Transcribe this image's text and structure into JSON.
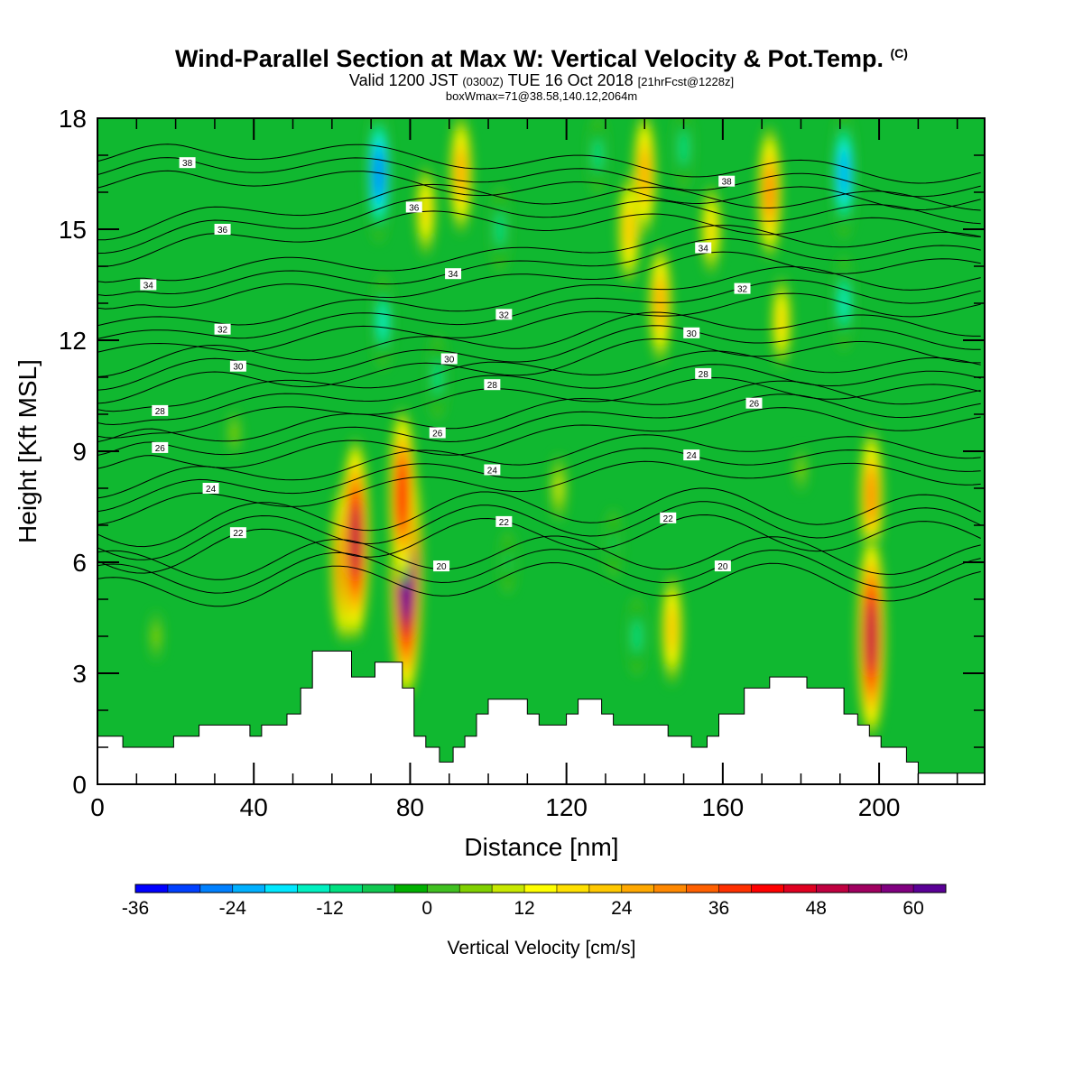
{
  "header": {
    "title": "Wind-Parallel Section at Max W: Vertical Velocity & Pot.Temp.",
    "title_mark": "(C)",
    "valid_prefix": "Valid 1200 JST",
    "valid_utc": "(0300Z)",
    "valid_date": "TUE 16 Oct 2018",
    "forecast": "[21hrFcst@1228z]",
    "box_info": "boxWmax=71@38.58,140.12,2064m"
  },
  "chart_data": {
    "type": "heatmap",
    "xlabel": "Distance [nm]",
    "ylabel": "Height [Kft MSL]",
    "xlim": [
      0,
      227
    ],
    "ylim": [
      0,
      18
    ],
    "x_ticks": [
      0,
      40,
      80,
      120,
      160,
      200
    ],
    "y_ticks": [
      0,
      3,
      6,
      9,
      12,
      15,
      18
    ],
    "colorbar": {
      "label": "Vertical Velocity [cm/s]",
      "min": -36,
      "max": 64,
      "step": 4,
      "tick_values": [
        -36,
        -24,
        -12,
        0,
        12,
        24,
        36,
        48,
        60
      ],
      "colors": [
        "#0000ff",
        "#0040ff",
        "#0080ff",
        "#00b0ff",
        "#00e8ff",
        "#00f0c0",
        "#00e080",
        "#10c850",
        "#00b000",
        "#40c020",
        "#80d000",
        "#c8e800",
        "#ffff00",
        "#ffe000",
        "#ffc800",
        "#ffa800",
        "#ff8800",
        "#ff6000",
        "#ff3000",
        "#ff0000",
        "#e00020",
        "#c00040",
        "#a00060",
        "#800080",
        "#5a0096"
      ]
    },
    "vertical_velocity_features": [
      {
        "x": 63,
        "height_kft": 6.0,
        "w_cm_s": 36
      },
      {
        "x": 66,
        "height_kft": 6.6,
        "w_cm_s": 48
      },
      {
        "x": 79,
        "height_kft": 5.8,
        "w_cm_s": 64
      },
      {
        "x": 78,
        "height_kft": 7.8,
        "w_cm_s": 40
      },
      {
        "x": 72,
        "height_kft": 16.5,
        "w_cm_s": -28
      },
      {
        "x": 73,
        "height_kft": 12.5,
        "w_cm_s": -16
      },
      {
        "x": 87,
        "height_kft": 11.0,
        "w_cm_s": -14
      },
      {
        "x": 84,
        "height_kft": 15.5,
        "w_cm_s": 16
      },
      {
        "x": 93,
        "height_kft": 16.5,
        "w_cm_s": 24
      },
      {
        "x": 103,
        "height_kft": 15.0,
        "w_cm_s": -14
      },
      {
        "x": 128,
        "height_kft": 17.0,
        "w_cm_s": -12
      },
      {
        "x": 136,
        "height_kft": 15.0,
        "w_cm_s": 22
      },
      {
        "x": 144,
        "height_kft": 13.0,
        "w_cm_s": 24
      },
      {
        "x": 140,
        "height_kft": 16.5,
        "w_cm_s": 26
      },
      {
        "x": 150,
        "height_kft": 17.2,
        "w_cm_s": -14
      },
      {
        "x": 157,
        "height_kft": 15.0,
        "w_cm_s": 16
      },
      {
        "x": 172,
        "height_kft": 16.0,
        "w_cm_s": 28
      },
      {
        "x": 175,
        "height_kft": 12.5,
        "w_cm_s": 16
      },
      {
        "x": 191,
        "height_kft": 16.5,
        "w_cm_s": -26
      },
      {
        "x": 191,
        "height_kft": 13.0,
        "w_cm_s": -16
      },
      {
        "x": 198,
        "height_kft": 7.8,
        "w_cm_s": 28
      },
      {
        "x": 198,
        "height_kft": 4.0,
        "w_cm_s": 48
      },
      {
        "x": 147,
        "height_kft": 4.2,
        "w_cm_s": 22
      },
      {
        "x": 138,
        "height_kft": 4.0,
        "w_cm_s": -12
      },
      {
        "x": 132,
        "height_kft": 6.5,
        "w_cm_s": -10
      },
      {
        "x": 105,
        "height_kft": 6.0,
        "w_cm_s": -8
      },
      {
        "x": 118,
        "height_kft": 8.0,
        "w_cm_s": 10
      },
      {
        "x": 35,
        "height_kft": 9.5,
        "w_cm_s": 4
      },
      {
        "x": 15,
        "height_kft": 4.0,
        "w_cm_s": 6
      },
      {
        "x": 180,
        "height_kft": 8.5,
        "w_cm_s": 4
      }
    ],
    "potential_temperature_labels": [
      {
        "text": "38",
        "x": 23,
        "height_kft": 16.8
      },
      {
        "text": "36",
        "x": 81,
        "height_kft": 15.6
      },
      {
        "text": "38",
        "x": 161,
        "height_kft": 16.3
      },
      {
        "text": "36",
        "x": 32,
        "height_kft": 15.0
      },
      {
        "text": "34",
        "x": 155,
        "height_kft": 14.5
      },
      {
        "text": "34",
        "x": 13,
        "height_kft": 13.5
      },
      {
        "text": "34",
        "x": 91,
        "height_kft": 13.8
      },
      {
        "text": "32",
        "x": 165,
        "height_kft": 13.4
      },
      {
        "text": "32",
        "x": 104,
        "height_kft": 12.7
      },
      {
        "text": "32",
        "x": 32,
        "height_kft": 12.3
      },
      {
        "text": "30",
        "x": 152,
        "height_kft": 12.2
      },
      {
        "text": "30",
        "x": 90,
        "height_kft": 11.5
      },
      {
        "text": "30",
        "x": 36,
        "height_kft": 11.3
      },
      {
        "text": "28",
        "x": 155,
        "height_kft": 11.1
      },
      {
        "text": "28",
        "x": 101,
        "height_kft": 10.8
      },
      {
        "text": "28",
        "x": 16,
        "height_kft": 10.1
      },
      {
        "text": "26",
        "x": 168,
        "height_kft": 10.3
      },
      {
        "text": "26",
        "x": 87,
        "height_kft": 9.5
      },
      {
        "text": "26",
        "x": 16,
        "height_kft": 9.1
      },
      {
        "text": "24",
        "x": 152,
        "height_kft": 8.9
      },
      {
        "text": "24",
        "x": 101,
        "height_kft": 8.5
      },
      {
        "text": "24",
        "x": 29,
        "height_kft": 8.0
      },
      {
        "text": "22",
        "x": 146,
        "height_kft": 7.2
      },
      {
        "text": "22",
        "x": 104,
        "height_kft": 7.1
      },
      {
        "text": "22",
        "x": 36,
        "height_kft": 6.8
      },
      {
        "text": "20",
        "x": 88,
        "height_kft": 5.9
      },
      {
        "text": "20",
        "x": 160,
        "height_kft": 5.9
      }
    ],
    "terrain_kft": [
      {
        "x": 0,
        "h": 1.3
      },
      {
        "x": 6.5,
        "h": 1.3
      },
      {
        "x": 6.5,
        "h": 1.0
      },
      {
        "x": 19.5,
        "h": 1.0
      },
      {
        "x": 19.5,
        "h": 1.3
      },
      {
        "x": 26,
        "h": 1.3
      },
      {
        "x": 26,
        "h": 1.6
      },
      {
        "x": 39,
        "h": 1.6
      },
      {
        "x": 39,
        "h": 1.3
      },
      {
        "x": 42,
        "h": 1.3
      },
      {
        "x": 42,
        "h": 1.6
      },
      {
        "x": 48.5,
        "h": 1.6
      },
      {
        "x": 48.5,
        "h": 1.9
      },
      {
        "x": 52,
        "h": 1.9
      },
      {
        "x": 52,
        "h": 2.6
      },
      {
        "x": 55,
        "h": 2.6
      },
      {
        "x": 55,
        "h": 3.6
      },
      {
        "x": 65,
        "h": 3.6
      },
      {
        "x": 65,
        "h": 2.9
      },
      {
        "x": 71,
        "h": 2.9
      },
      {
        "x": 71,
        "h": 3.3
      },
      {
        "x": 78,
        "h": 3.3
      },
      {
        "x": 78,
        "h": 2.6
      },
      {
        "x": 81,
        "h": 2.6
      },
      {
        "x": 81,
        "h": 1.3
      },
      {
        "x": 84,
        "h": 1.3
      },
      {
        "x": 84,
        "h": 1.0
      },
      {
        "x": 87.5,
        "h": 1.0
      },
      {
        "x": 87.5,
        "h": 0.6
      },
      {
        "x": 91,
        "h": 0.6
      },
      {
        "x": 91,
        "h": 1.0
      },
      {
        "x": 94,
        "h": 1.0
      },
      {
        "x": 94,
        "h": 1.3
      },
      {
        "x": 97,
        "h": 1.3
      },
      {
        "x": 97,
        "h": 1.9
      },
      {
        "x": 100,
        "h": 1.9
      },
      {
        "x": 100,
        "h": 2.3
      },
      {
        "x": 110,
        "h": 2.3
      },
      {
        "x": 110,
        "h": 1.9
      },
      {
        "x": 113,
        "h": 1.9
      },
      {
        "x": 113,
        "h": 1.6
      },
      {
        "x": 120,
        "h": 1.6
      },
      {
        "x": 120,
        "h": 1.9
      },
      {
        "x": 123,
        "h": 1.9
      },
      {
        "x": 123,
        "h": 2.3
      },
      {
        "x": 129,
        "h": 2.3
      },
      {
        "x": 129,
        "h": 1.9
      },
      {
        "x": 132,
        "h": 1.9
      },
      {
        "x": 132,
        "h": 1.6
      },
      {
        "x": 146,
        "h": 1.6
      },
      {
        "x": 146,
        "h": 1.3
      },
      {
        "x": 152,
        "h": 1.3
      },
      {
        "x": 152,
        "h": 1.0
      },
      {
        "x": 156,
        "h": 1.0
      },
      {
        "x": 156,
        "h": 1.3
      },
      {
        "x": 159,
        "h": 1.3
      },
      {
        "x": 159,
        "h": 1.9
      },
      {
        "x": 165.5,
        "h": 1.9
      },
      {
        "x": 165.5,
        "h": 2.6
      },
      {
        "x": 172,
        "h": 2.6
      },
      {
        "x": 172,
        "h": 2.9
      },
      {
        "x": 181.5,
        "h": 2.9
      },
      {
        "x": 181.5,
        "h": 2.6
      },
      {
        "x": 191,
        "h": 2.6
      },
      {
        "x": 191,
        "h": 1.9
      },
      {
        "x": 194.5,
        "h": 1.9
      },
      {
        "x": 194.5,
        "h": 1.6
      },
      {
        "x": 197.5,
        "h": 1.6
      },
      {
        "x": 197.5,
        "h": 1.3
      },
      {
        "x": 200.5,
        "h": 1.3
      },
      {
        "x": 200.5,
        "h": 1.0
      },
      {
        "x": 207,
        "h": 1.0
      },
      {
        "x": 207,
        "h": 0.6
      },
      {
        "x": 210,
        "h": 0.6
      },
      {
        "x": 210,
        "h": 0.3
      },
      {
        "x": 227,
        "h": 0.3
      }
    ]
  }
}
